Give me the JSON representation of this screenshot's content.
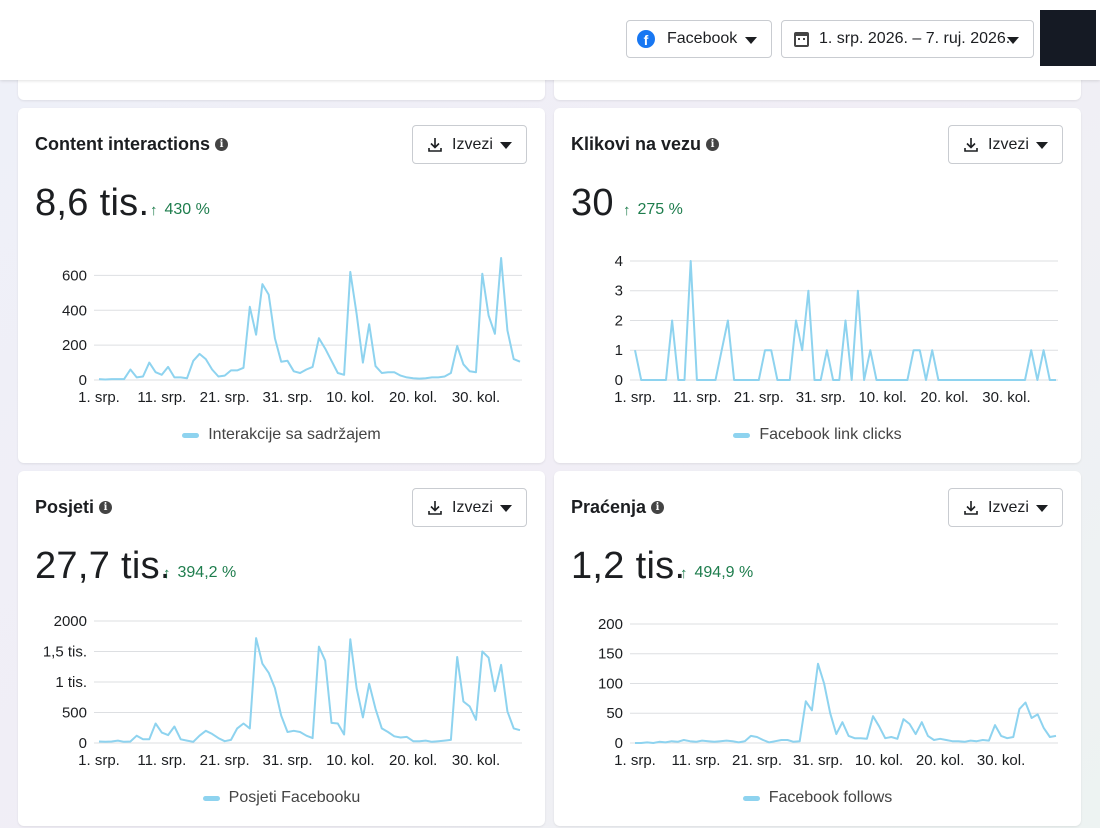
{
  "header": {
    "platform_label": "Facebook",
    "date_range": "1. srp. 2026. – 7. ruj. 2026."
  },
  "colors": {
    "line": "#8ed3ef",
    "positive": "#1e7d4d",
    "grid": "#dddfe2"
  },
  "export_label": "Izvezi",
  "x_tick_labels": [
    "1. srp.",
    "11. srp.",
    "21. srp.",
    "31. srp.",
    "10. kol.",
    "20. kol.",
    "30. kol."
  ],
  "chart_data": [
    {
      "type": "line",
      "title": "Content interactions",
      "value": "8,6 tis.",
      "change": "430 %",
      "series": [
        {
          "name": "Interakcije sa sadržajem",
          "values": [
            5,
            3,
            5,
            5,
            5,
            60,
            15,
            20,
            100,
            45,
            30,
            75,
            15,
            15,
            10,
            110,
            150,
            120,
            60,
            20,
            25,
            55,
            55,
            70,
            420,
            260,
            550,
            490,
            240,
            105,
            110,
            50,
            40,
            60,
            75,
            240,
            180,
            110,
            40,
            30,
            620,
            380,
            100,
            320,
            80,
            40,
            45,
            45,
            25,
            15,
            10,
            8,
            10,
            15,
            15,
            20,
            40,
            195,
            90,
            50,
            45,
            610,
            370,
            265,
            700,
            285,
            120,
            105
          ]
        }
      ],
      "ylim": [
        0,
        700
      ],
      "yticks": [
        {
          "v": 0,
          "label": "0"
        },
        {
          "v": 200,
          "label": "200"
        },
        {
          "v": 400,
          "label": "400"
        },
        {
          "v": 600,
          "label": "600"
        }
      ]
    },
    {
      "type": "line",
      "title": "Klikovi na vezu",
      "value": "30",
      "change": "275 %",
      "series": [
        {
          "name": "Facebook link clicks",
          "values": [
            1,
            0,
            0,
            0,
            0,
            0,
            2,
            0,
            0,
            4,
            0,
            0,
            0,
            0,
            1,
            2,
            0,
            0,
            0,
            0,
            0,
            1,
            1,
            0,
            0,
            0,
            2,
            1,
            3,
            0,
            0,
            1,
            0,
            0,
            2,
            0,
            3,
            0,
            1,
            0,
            0,
            0,
            0,
            0,
            0,
            1,
            1,
            0,
            1,
            0,
            0,
            0,
            0,
            0,
            0,
            0,
            0,
            0,
            0,
            0,
            0,
            0,
            0,
            0,
            1,
            0,
            1,
            0,
            0
          ]
        }
      ],
      "ylim": [
        0,
        4.1
      ],
      "yticks": [
        {
          "v": 0,
          "label": "0"
        },
        {
          "v": 1,
          "label": "1"
        },
        {
          "v": 2,
          "label": "2"
        },
        {
          "v": 3,
          "label": "3"
        },
        {
          "v": 4,
          "label": "4"
        }
      ]
    },
    {
      "type": "line",
      "title": "Posjeti",
      "value": "27,7 tis.",
      "change": "394,2 %",
      "series": [
        {
          "name": "Posjeti Facebooku",
          "values": [
            25,
            20,
            25,
            40,
            20,
            25,
            120,
            60,
            60,
            320,
            170,
            130,
            270,
            60,
            40,
            20,
            120,
            200,
            150,
            80,
            30,
            50,
            240,
            320,
            240,
            1720,
            1300,
            1150,
            900,
            450,
            180,
            200,
            180,
            120,
            80,
            1580,
            1350,
            330,
            320,
            140,
            1700,
            900,
            420,
            970,
            560,
            240,
            180,
            110,
            90,
            100,
            30,
            30,
            40,
            20,
            30,
            40,
            50,
            1410,
            680,
            600,
            380,
            1500,
            1400,
            850,
            1280,
            520,
            240,
            210
          ]
        }
      ],
      "ylim": [
        0,
        2000
      ],
      "yticks": [
        {
          "v": 0,
          "label": "0"
        },
        {
          "v": 500,
          "label": "500"
        },
        {
          "v": 1000,
          "label": "1 tis."
        },
        {
          "v": 1500,
          "label": "1,5 tis."
        },
        {
          "v": 2000,
          "label": "2000"
        }
      ]
    },
    {
      "type": "line",
      "title": "Praćenja",
      "value": "1,2 tis.",
      "change": "494,9 %",
      "series": [
        {
          "name": "Facebook follows",
          "values": [
            0,
            0,
            1,
            0,
            2,
            1,
            3,
            2,
            5,
            3,
            2,
            4,
            3,
            2,
            3,
            4,
            3,
            1,
            3,
            12,
            10,
            5,
            1,
            3,
            5,
            5,
            2,
            3,
            70,
            55,
            133,
            100,
            50,
            15,
            35,
            12,
            8,
            8,
            7,
            45,
            28,
            8,
            10,
            7,
            40,
            32,
            15,
            35,
            12,
            5,
            7,
            5,
            3,
            3,
            2,
            4,
            3,
            5,
            4,
            30,
            12,
            8,
            10,
            57,
            68,
            42,
            48,
            25,
            10,
            12
          ]
        }
      ],
      "ylim": [
        0,
        205
      ],
      "yticks": [
        {
          "v": 0,
          "label": "0"
        },
        {
          "v": 50,
          "label": "50"
        },
        {
          "v": 100,
          "label": "100"
        },
        {
          "v": 150,
          "label": "150"
        },
        {
          "v": 200,
          "label": "200"
        }
      ]
    }
  ]
}
